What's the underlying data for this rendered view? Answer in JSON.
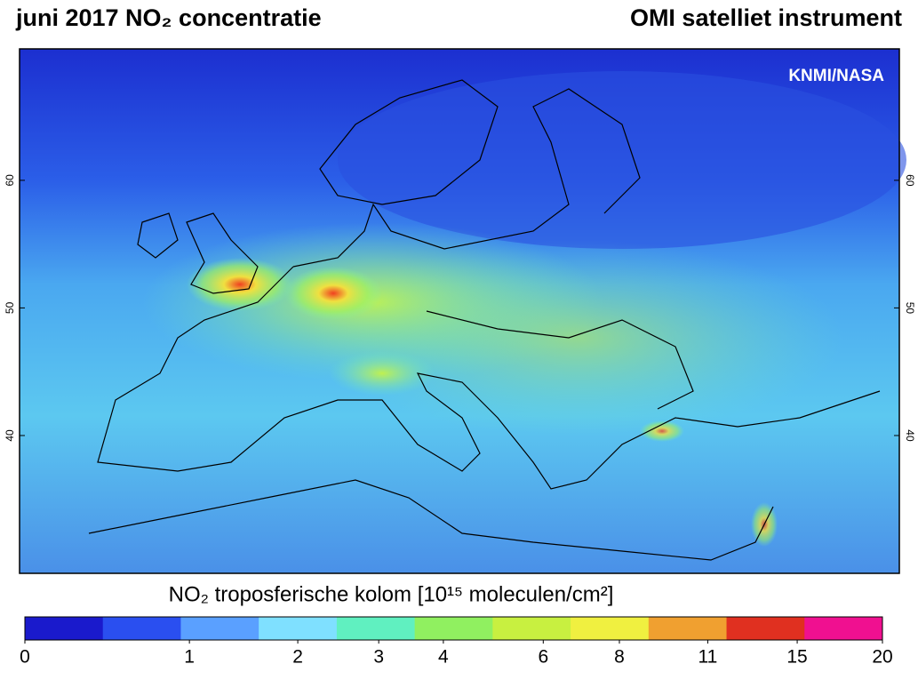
{
  "map": {
    "title": "juni 2017 NO₂ concentratie",
    "subtitle": "OMI satelliet instrument",
    "credit": "KNMI/NASA",
    "ylim": [
      29.2,
      70.3
    ],
    "yticks": [
      60,
      50,
      40
    ],
    "colorbar": {
      "label": "NO₂ troposferische kolom [10¹⁵ moleculen/cm²]",
      "ticks": [
        0,
        1,
        2,
        3,
        4,
        6,
        8,
        11,
        15,
        20
      ],
      "colors": [
        "#1a1acc",
        "#2a4ff0",
        "#5aa0ff",
        "#7fe0ff",
        "#60f0c0",
        "#90f060",
        "#c8f040",
        "#f0f040",
        "#f0a030",
        "#e03020",
        "#f01090"
      ]
    }
  }
}
